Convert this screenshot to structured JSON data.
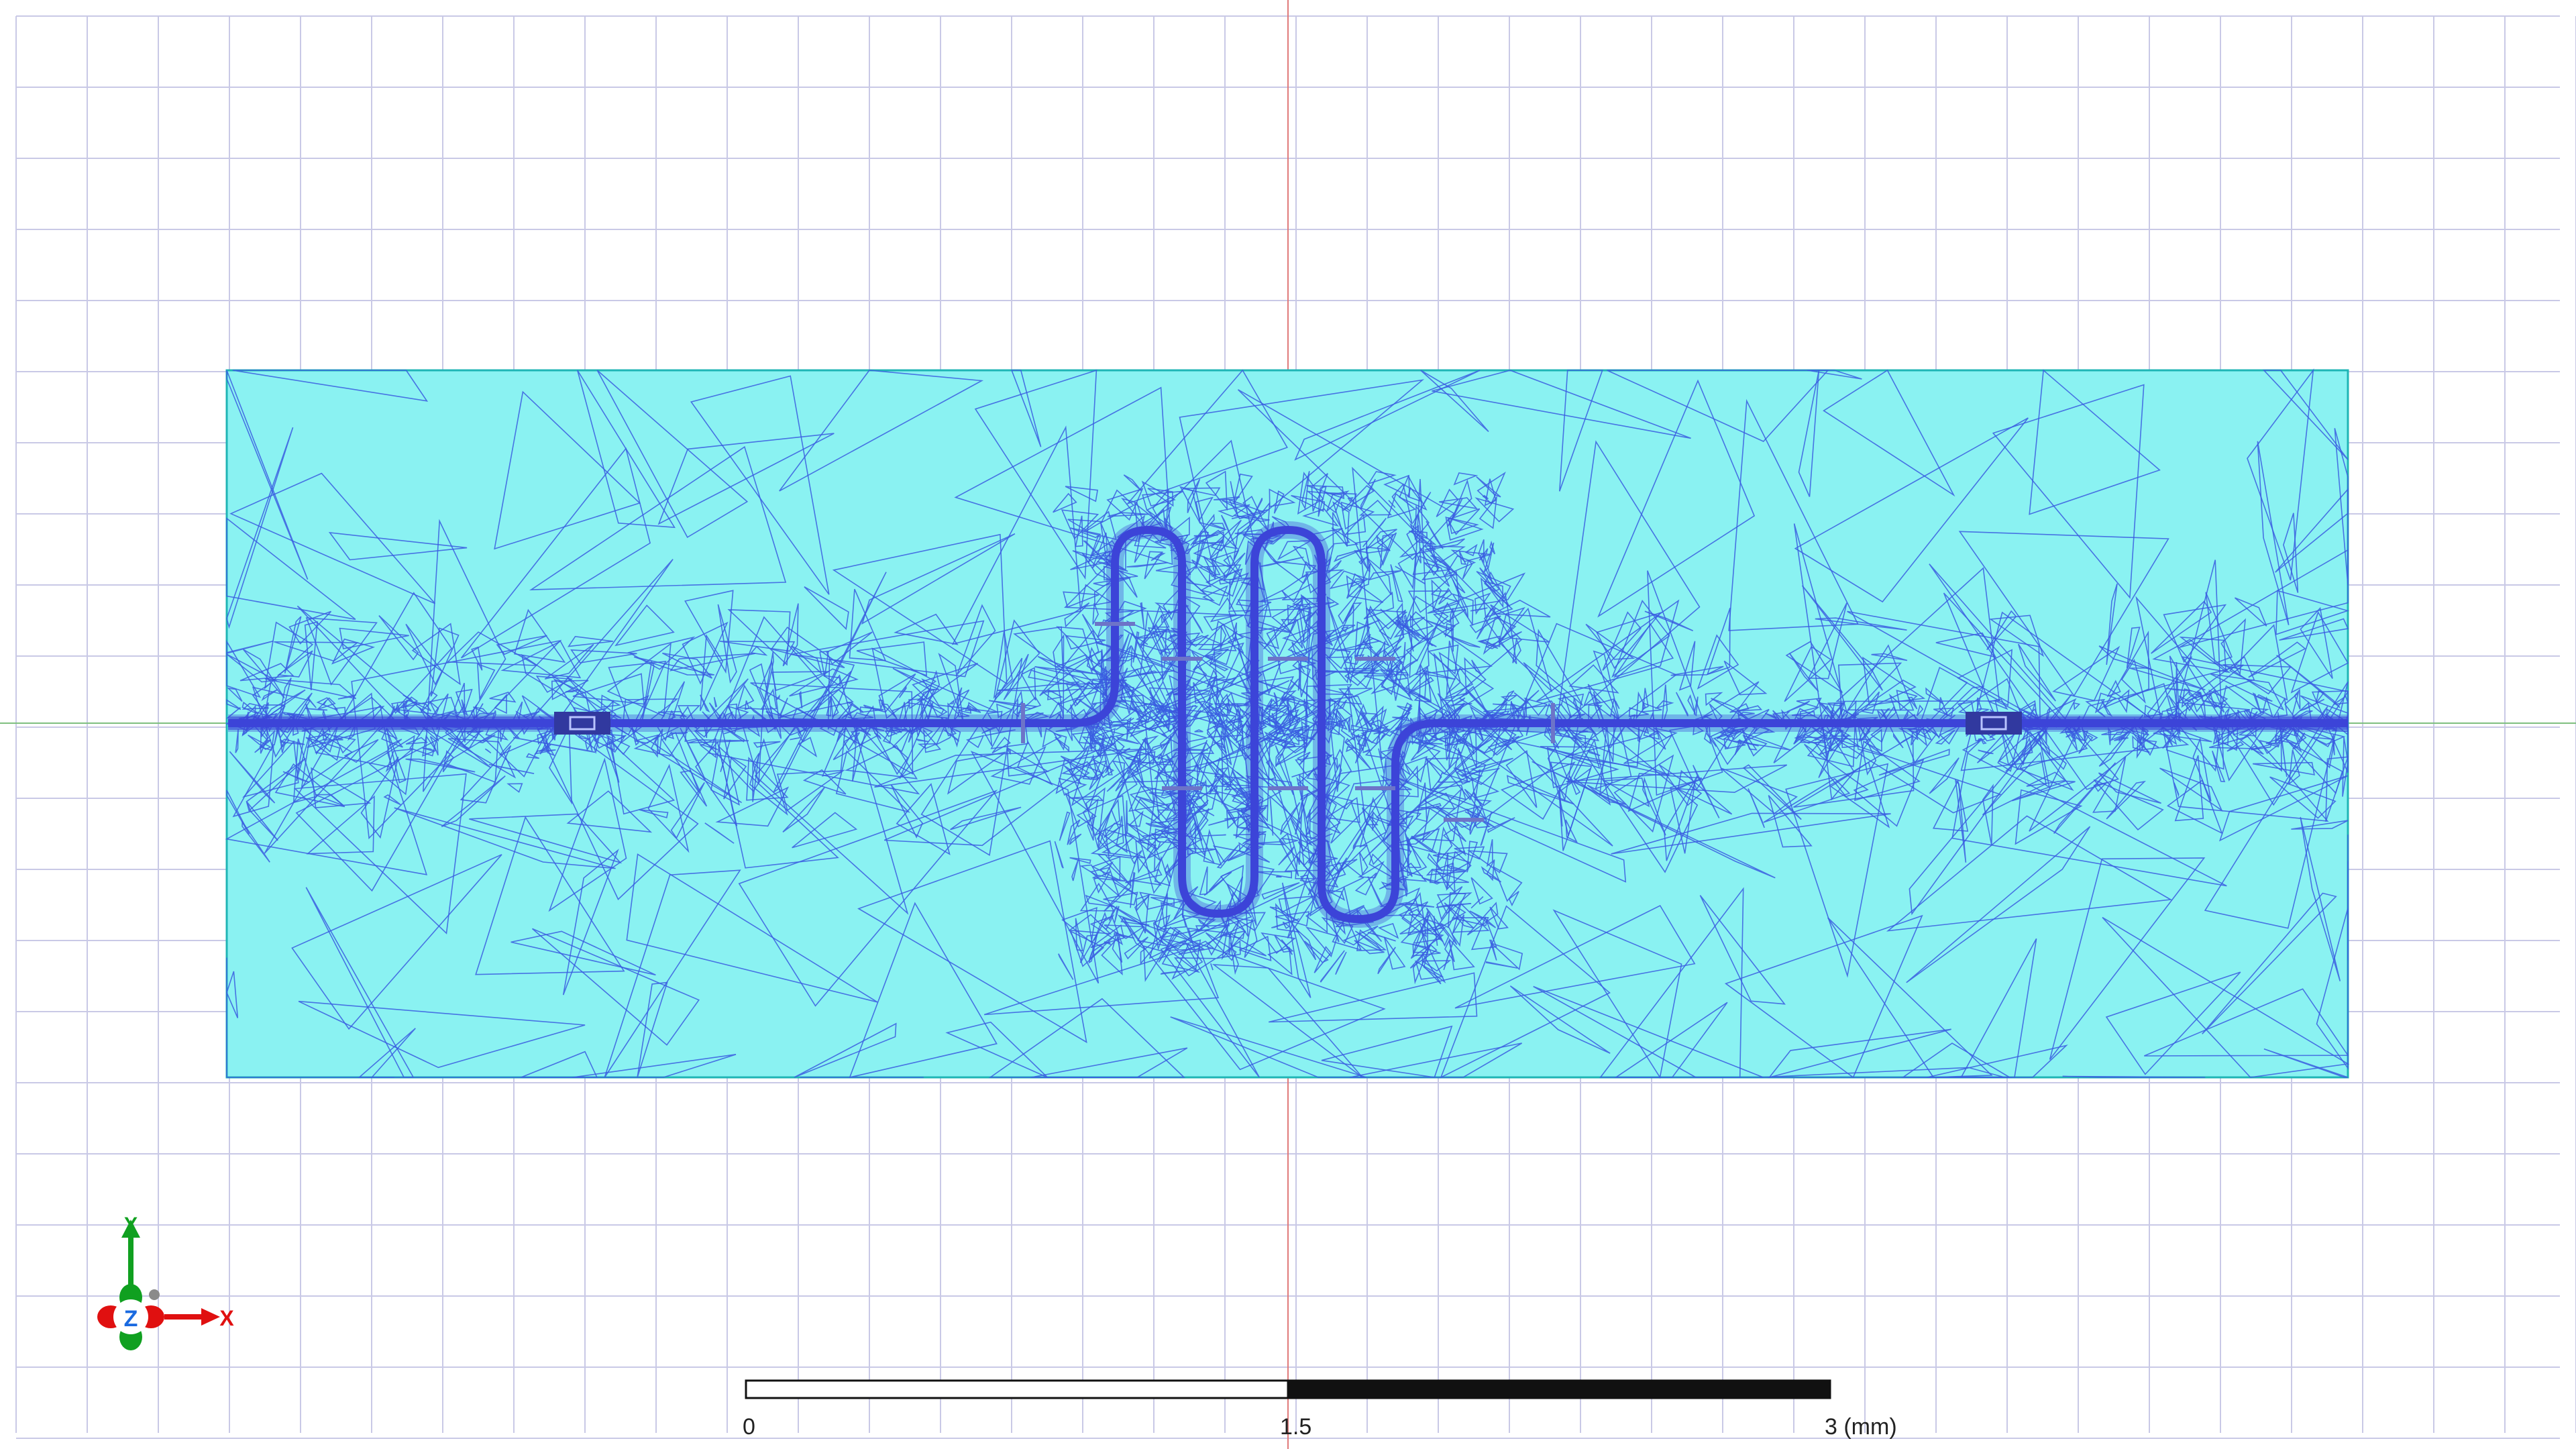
{
  "view": {
    "background_color": "#ffffff",
    "grid_color": "#c9c9e6",
    "x_axis_color": "#7fbf7f",
    "y_axis_color": "#e07a7a"
  },
  "substrate": {
    "fill_color": "#8af2f2",
    "border_color": "#1fb5b5",
    "mesh_color": "#3a5de0"
  },
  "filter": {
    "trace_color": "#3c44d8",
    "port_color": "#31399f"
  },
  "scale_bar": {
    "labels": [
      "0",
      "1.5",
      "3 (mm)"
    ]
  },
  "triad": {
    "x_label": "X",
    "y_label": "Y",
    "z_label": "Z",
    "x_color": "#e01010",
    "y_color": "#10a020",
    "z_color": "#1a6ae0"
  }
}
